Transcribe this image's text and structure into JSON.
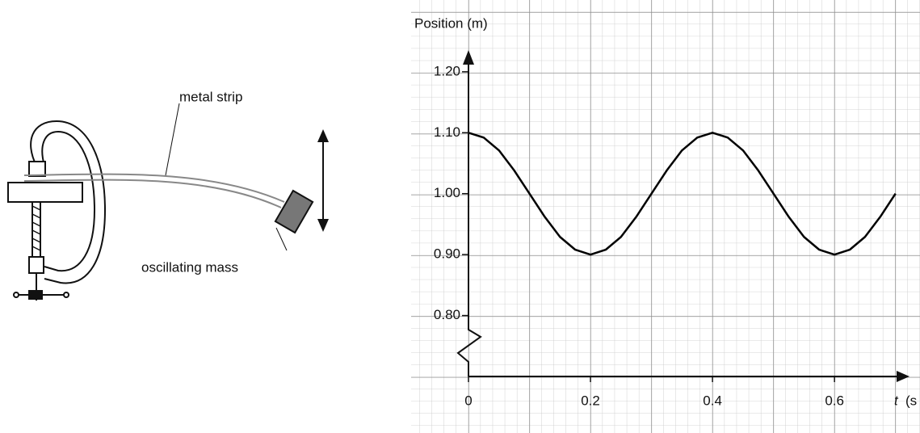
{
  "diagram": {
    "labels": [
      "metal strip",
      "oscillating mass"
    ]
  },
  "chart_data": {
    "type": "line",
    "y_label": "Position (m)",
    "x_label": {
      "symbol": "t",
      "unit": "(s"
    },
    "x": [
      0,
      0.025,
      0.05,
      0.075,
      0.1,
      0.125,
      0.15,
      0.175,
      0.2,
      0.225,
      0.25,
      0.275,
      0.3,
      0.325,
      0.35,
      0.375,
      0.4,
      0.425,
      0.45,
      0.475,
      0.5,
      0.525,
      0.55,
      0.575,
      0.6,
      0.625,
      0.65,
      0.675,
      0.7
    ],
    "series": [
      {
        "color": "#000000",
        "values": [
          1.1,
          1.092,
          1.071,
          1.038,
          1.0,
          0.962,
          0.929,
          0.908,
          0.9,
          0.908,
          0.929,
          0.962,
          1.0,
          1.038,
          1.071,
          1.092,
          1.1,
          1.092,
          1.071,
          1.038,
          1.0,
          0.962,
          0.929,
          0.908,
          0.9,
          0.908,
          0.929,
          0.962,
          1.0
        ]
      }
    ],
    "xlim": [
      0,
      0.715
    ],
    "ylim": [
      0.7,
      1.225
    ],
    "xticks": [
      0,
      0.2,
      0.4,
      0.6
    ],
    "yticks": [
      {
        "value": 0.8,
        "label": "0.80"
      },
      {
        "value": 0.9,
        "label": "0.90"
      },
      {
        "value": 1.0,
        "label": "1.00"
      },
      {
        "value": 1.1,
        "label": "1.10"
      },
      {
        "value": 1.2,
        "label": "1.20"
      }
    ]
  }
}
